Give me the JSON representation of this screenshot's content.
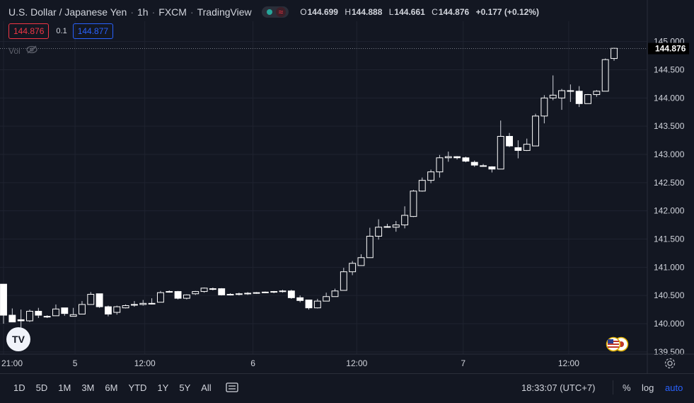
{
  "header": {
    "symbol_title": "U.S. Dollar / Japanese Yen",
    "interval": "1h",
    "exchange": "FXCM",
    "source": "TradingView",
    "status_icons": [
      "market-open-dot-icon",
      "data-wave-icon"
    ],
    "ohlc": {
      "o_label": "O",
      "o_value": "144.699",
      "h_label": "H",
      "h_value": "144.888",
      "l_label": "L",
      "l_value": "144.661",
      "c_label": "C",
      "c_value": "144.876",
      "change": "+0.177 (+0.12%)"
    }
  },
  "quote": {
    "bid": "144.876",
    "spread": "0.1",
    "ask": "144.877"
  },
  "volume": {
    "label": "Vol",
    "icon": "eye-hidden-icon"
  },
  "colors": {
    "background": "#131722",
    "grid": "#1f2330",
    "candle_body": "#ffffff",
    "candle_wick": "#d1d4dc",
    "bid": "#f23645",
    "ask": "#2962ff",
    "last_price_line": "#787b86",
    "axis_text": "#d1d4dc"
  },
  "chart_data": {
    "type": "candlestick",
    "x_tick_labels": [
      "21:00",
      "5",
      "12:00",
      "6",
      "12:00",
      "7",
      "12:00"
    ],
    "y_tick_labels": [
      "145.000",
      "144.500",
      "144.000",
      "143.500",
      "143.000",
      "142.500",
      "142.000",
      "141.500",
      "141.000",
      "140.500",
      "140.000",
      "139.500"
    ],
    "ylim": [
      139.46,
      145.36
    ],
    "grid": true,
    "last_price": 144.876,
    "last_price_label": "144.876",
    "candles": [
      {
        "o": 140.7,
        "h": 140.7,
        "l": 140.0,
        "c": 140.15
      },
      {
        "o": 140.15,
        "h": 140.27,
        "l": 140.03,
        "c": 140.03
      },
      {
        "o": 140.07,
        "h": 140.25,
        "l": 139.93,
        "c": 140.05
      },
      {
        "o": 140.05,
        "h": 140.25,
        "l": 140.03,
        "c": 140.22
      },
      {
        "o": 140.22,
        "h": 140.28,
        "l": 140.1,
        "c": 140.15
      },
      {
        "o": 140.12,
        "h": 140.15,
        "l": 140.1,
        "c": 140.13
      },
      {
        "o": 140.14,
        "h": 140.34,
        "l": 140.14,
        "c": 140.26
      },
      {
        "o": 140.28,
        "h": 140.28,
        "l": 140.14,
        "c": 140.18
      },
      {
        "o": 140.13,
        "h": 140.28,
        "l": 140.13,
        "c": 140.16
      },
      {
        "o": 140.17,
        "h": 140.4,
        "l": 140.17,
        "c": 140.34
      },
      {
        "o": 140.34,
        "h": 140.56,
        "l": 140.34,
        "c": 140.52
      },
      {
        "o": 140.53,
        "h": 140.53,
        "l": 140.28,
        "c": 140.3
      },
      {
        "o": 140.3,
        "h": 140.32,
        "l": 140.13,
        "c": 140.17
      },
      {
        "o": 140.2,
        "h": 140.32,
        "l": 140.16,
        "c": 140.3
      },
      {
        "o": 140.28,
        "h": 140.34,
        "l": 140.27,
        "c": 140.32
      },
      {
        "o": 140.34,
        "h": 140.4,
        "l": 140.3,
        "c": 140.34
      },
      {
        "o": 140.34,
        "h": 140.42,
        "l": 140.32,
        "c": 140.36
      },
      {
        "o": 140.35,
        "h": 140.45,
        "l": 140.34,
        "c": 140.36
      },
      {
        "o": 140.38,
        "h": 140.58,
        "l": 140.38,
        "c": 140.55
      },
      {
        "o": 140.56,
        "h": 140.59,
        "l": 140.55,
        "c": 140.57
      },
      {
        "o": 140.57,
        "h": 140.58,
        "l": 140.43,
        "c": 140.45
      },
      {
        "o": 140.45,
        "h": 140.52,
        "l": 140.43,
        "c": 140.51
      },
      {
        "o": 140.53,
        "h": 140.58,
        "l": 140.51,
        "c": 140.57
      },
      {
        "o": 140.57,
        "h": 140.64,
        "l": 140.55,
        "c": 140.63
      },
      {
        "o": 140.62,
        "h": 140.64,
        "l": 140.59,
        "c": 140.62
      },
      {
        "o": 140.62,
        "h": 140.63,
        "l": 140.5,
        "c": 140.51
      },
      {
        "o": 140.51,
        "h": 140.54,
        "l": 140.5,
        "c": 140.52
      },
      {
        "o": 140.52,
        "h": 140.55,
        "l": 140.5,
        "c": 140.53
      },
      {
        "o": 140.53,
        "h": 140.56,
        "l": 140.51,
        "c": 140.54
      },
      {
        "o": 140.54,
        "h": 140.56,
        "l": 140.53,
        "c": 140.55
      },
      {
        "o": 140.55,
        "h": 140.57,
        "l": 140.54,
        "c": 140.56
      },
      {
        "o": 140.56,
        "h": 140.58,
        "l": 140.54,
        "c": 140.57
      },
      {
        "o": 140.57,
        "h": 140.6,
        "l": 140.55,
        "c": 140.58
      },
      {
        "o": 140.58,
        "h": 140.6,
        "l": 140.44,
        "c": 140.46
      },
      {
        "o": 140.46,
        "h": 140.5,
        "l": 140.38,
        "c": 140.41
      },
      {
        "o": 140.42,
        "h": 140.42,
        "l": 140.25,
        "c": 140.28
      },
      {
        "o": 140.28,
        "h": 140.44,
        "l": 140.27,
        "c": 140.4
      },
      {
        "o": 140.4,
        "h": 140.55,
        "l": 140.4,
        "c": 140.48
      },
      {
        "o": 140.48,
        "h": 140.62,
        "l": 140.48,
        "c": 140.58
      },
      {
        "o": 140.59,
        "h": 140.99,
        "l": 140.59,
        "c": 140.92
      },
      {
        "o": 140.92,
        "h": 141.11,
        "l": 140.86,
        "c": 141.07
      },
      {
        "o": 141.03,
        "h": 141.23,
        "l": 141.03,
        "c": 141.17
      },
      {
        "o": 141.17,
        "h": 141.7,
        "l": 141.17,
        "c": 141.55
      },
      {
        "o": 141.55,
        "h": 141.85,
        "l": 141.49,
        "c": 141.71
      },
      {
        "o": 141.71,
        "h": 141.77,
        "l": 141.7,
        "c": 141.72
      },
      {
        "o": 141.71,
        "h": 141.82,
        "l": 141.63,
        "c": 141.75
      },
      {
        "o": 141.75,
        "h": 142.08,
        "l": 141.69,
        "c": 141.92
      },
      {
        "o": 141.9,
        "h": 142.37,
        "l": 141.89,
        "c": 142.35
      },
      {
        "o": 142.35,
        "h": 142.59,
        "l": 142.34,
        "c": 142.54
      },
      {
        "o": 142.54,
        "h": 142.73,
        "l": 142.49,
        "c": 142.69
      },
      {
        "o": 142.69,
        "h": 142.99,
        "l": 142.59,
        "c": 142.94
      },
      {
        "o": 142.94,
        "h": 143.05,
        "l": 142.87,
        "c": 142.96
      },
      {
        "o": 142.96,
        "h": 142.97,
        "l": 142.91,
        "c": 142.94
      },
      {
        "o": 142.94,
        "h": 142.96,
        "l": 142.86,
        "c": 142.88
      },
      {
        "o": 142.86,
        "h": 142.89,
        "l": 142.78,
        "c": 142.81
      },
      {
        "o": 142.8,
        "h": 142.83,
        "l": 142.78,
        "c": 142.79
      },
      {
        "o": 142.78,
        "h": 142.79,
        "l": 142.68,
        "c": 142.74
      },
      {
        "o": 142.74,
        "h": 143.6,
        "l": 142.74,
        "c": 143.32
      },
      {
        "o": 143.32,
        "h": 143.38,
        "l": 143.13,
        "c": 143.15
      },
      {
        "o": 143.12,
        "h": 143.25,
        "l": 142.93,
        "c": 143.07
      },
      {
        "o": 143.07,
        "h": 143.28,
        "l": 143.06,
        "c": 143.18
      },
      {
        "o": 143.15,
        "h": 143.72,
        "l": 143.15,
        "c": 143.68
      },
      {
        "o": 143.68,
        "h": 144.05,
        "l": 143.55,
        "c": 144.0
      },
      {
        "o": 144.0,
        "h": 144.4,
        "l": 143.96,
        "c": 144.05
      },
      {
        "o": 144.0,
        "h": 144.16,
        "l": 143.79,
        "c": 144.13
      },
      {
        "o": 144.13,
        "h": 144.24,
        "l": 143.93,
        "c": 144.12
      },
      {
        "o": 144.12,
        "h": 144.21,
        "l": 143.84,
        "c": 143.9
      },
      {
        "o": 143.9,
        "h": 144.07,
        "l": 143.9,
        "c": 144.06
      },
      {
        "o": 144.06,
        "h": 144.14,
        "l": 144.02,
        "c": 144.12
      },
      {
        "o": 144.12,
        "h": 144.7,
        "l": 144.12,
        "c": 144.68
      },
      {
        "o": 144.7,
        "h": 144.89,
        "l": 144.66,
        "c": 144.88
      }
    ]
  },
  "bottom_bar": {
    "ranges": [
      "1D",
      "5D",
      "1M",
      "3M",
      "6M",
      "YTD",
      "1Y",
      "5Y",
      "All"
    ],
    "compare_icon": "compare-icon",
    "clock": "18:33:07 (UTC+7)",
    "percent": "%",
    "log": "log",
    "auto": "auto"
  },
  "badges": {
    "logo_text": "TV",
    "flags_icon": "us-jp-flags-icon",
    "settings_icon": "gear-icon"
  }
}
